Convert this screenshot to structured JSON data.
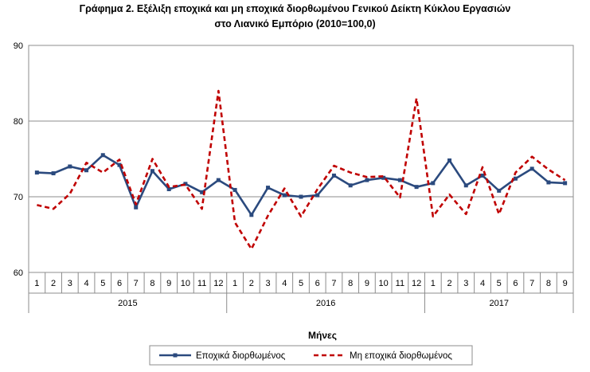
{
  "title_line1": "Γράφημα 2. Εξέλιξη εποχικά και μη εποχικά διορθωμένου Γενικού Δείκτη Κύκλου Εργασιών",
  "title_line2": "στο Λιανικό Εμπόριο (2010=100,0)",
  "chart_data": {
    "type": "line",
    "title": "Γράφημα 2. Εξέλιξη εποχικά και μη εποχικά διορθωμένου Γενικού Δείκτη Κύκλου Εργασιών στο Λιανικό Εμπόριο (2010=100,0)",
    "xlabel": "Μήνες",
    "ylabel": "",
    "ylim": [
      60,
      90
    ],
    "yticks": [
      60,
      70,
      80,
      90
    ],
    "grid": "horizontal",
    "legend_position": "bottom",
    "years": [
      {
        "label": "2015",
        "months": 12
      },
      {
        "label": "2016",
        "months": 12
      },
      {
        "label": "2017",
        "months": 9
      }
    ],
    "categories": [
      "1",
      "2",
      "3",
      "4",
      "5",
      "6",
      "7",
      "8",
      "9",
      "10",
      "11",
      "12",
      "1",
      "2",
      "3",
      "4",
      "5",
      "6",
      "7",
      "8",
      "9",
      "10",
      "11",
      "12",
      "1",
      "2",
      "3",
      "4",
      "5",
      "6",
      "7",
      "8",
      "9"
    ],
    "series": [
      {
        "name": "Εποχικά διορθωμένος",
        "color": "#2b4a7e",
        "style": "solid",
        "values": [
          73.2,
          73.1,
          74.0,
          73.5,
          75.5,
          74.2,
          68.6,
          73.4,
          71.0,
          71.7,
          70.6,
          72.2,
          70.9,
          67.6,
          71.2,
          70.2,
          70.0,
          70.2,
          72.8,
          71.5,
          72.2,
          72.5,
          72.2,
          71.3,
          71.8,
          74.8,
          71.5,
          72.8,
          70.8,
          72.4,
          73.7,
          71.9,
          71.8
        ]
      },
      {
        "name": "Μη εποχικά διορθωμένος",
        "color": "#c00000",
        "style": "dashed",
        "values": [
          68.9,
          68.4,
          70.4,
          74.5,
          73.2,
          74.9,
          69.0,
          75.0,
          71.3,
          71.6,
          68.4,
          84.0,
          66.6,
          63.1,
          67.5,
          71.1,
          67.4,
          71.0,
          74.1,
          73.2,
          72.6,
          72.7,
          69.9,
          83.0,
          67.4,
          70.3,
          67.7,
          73.9,
          67.7,
          73.2,
          75.3,
          73.6,
          72.2
        ]
      }
    ]
  }
}
